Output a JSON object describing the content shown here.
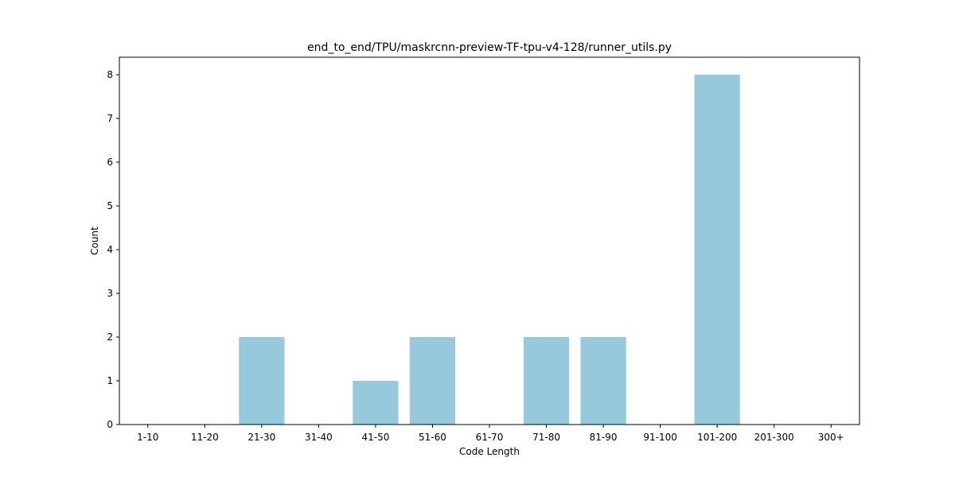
{
  "chart_data": {
    "type": "bar",
    "title": "end_to_end/TPU/maskrcnn-preview-TF-tpu-v4-128/runner_utils.py",
    "xlabel": "Code Length",
    "ylabel": "Count",
    "categories": [
      "1-10",
      "11-20",
      "21-30",
      "31-40",
      "41-50",
      "51-60",
      "61-70",
      "71-80",
      "81-90",
      "91-100",
      "101-200",
      "201-300",
      "300+"
    ],
    "values": [
      0,
      0,
      2,
      0,
      1,
      2,
      0,
      2,
      2,
      0,
      8,
      0,
      0
    ],
    "ylim": [
      0,
      8.4
    ],
    "yticks": [
      0,
      1,
      2,
      3,
      4,
      5,
      6,
      7,
      8
    ],
    "bar_color": "#96c9dc",
    "grid": false
  }
}
